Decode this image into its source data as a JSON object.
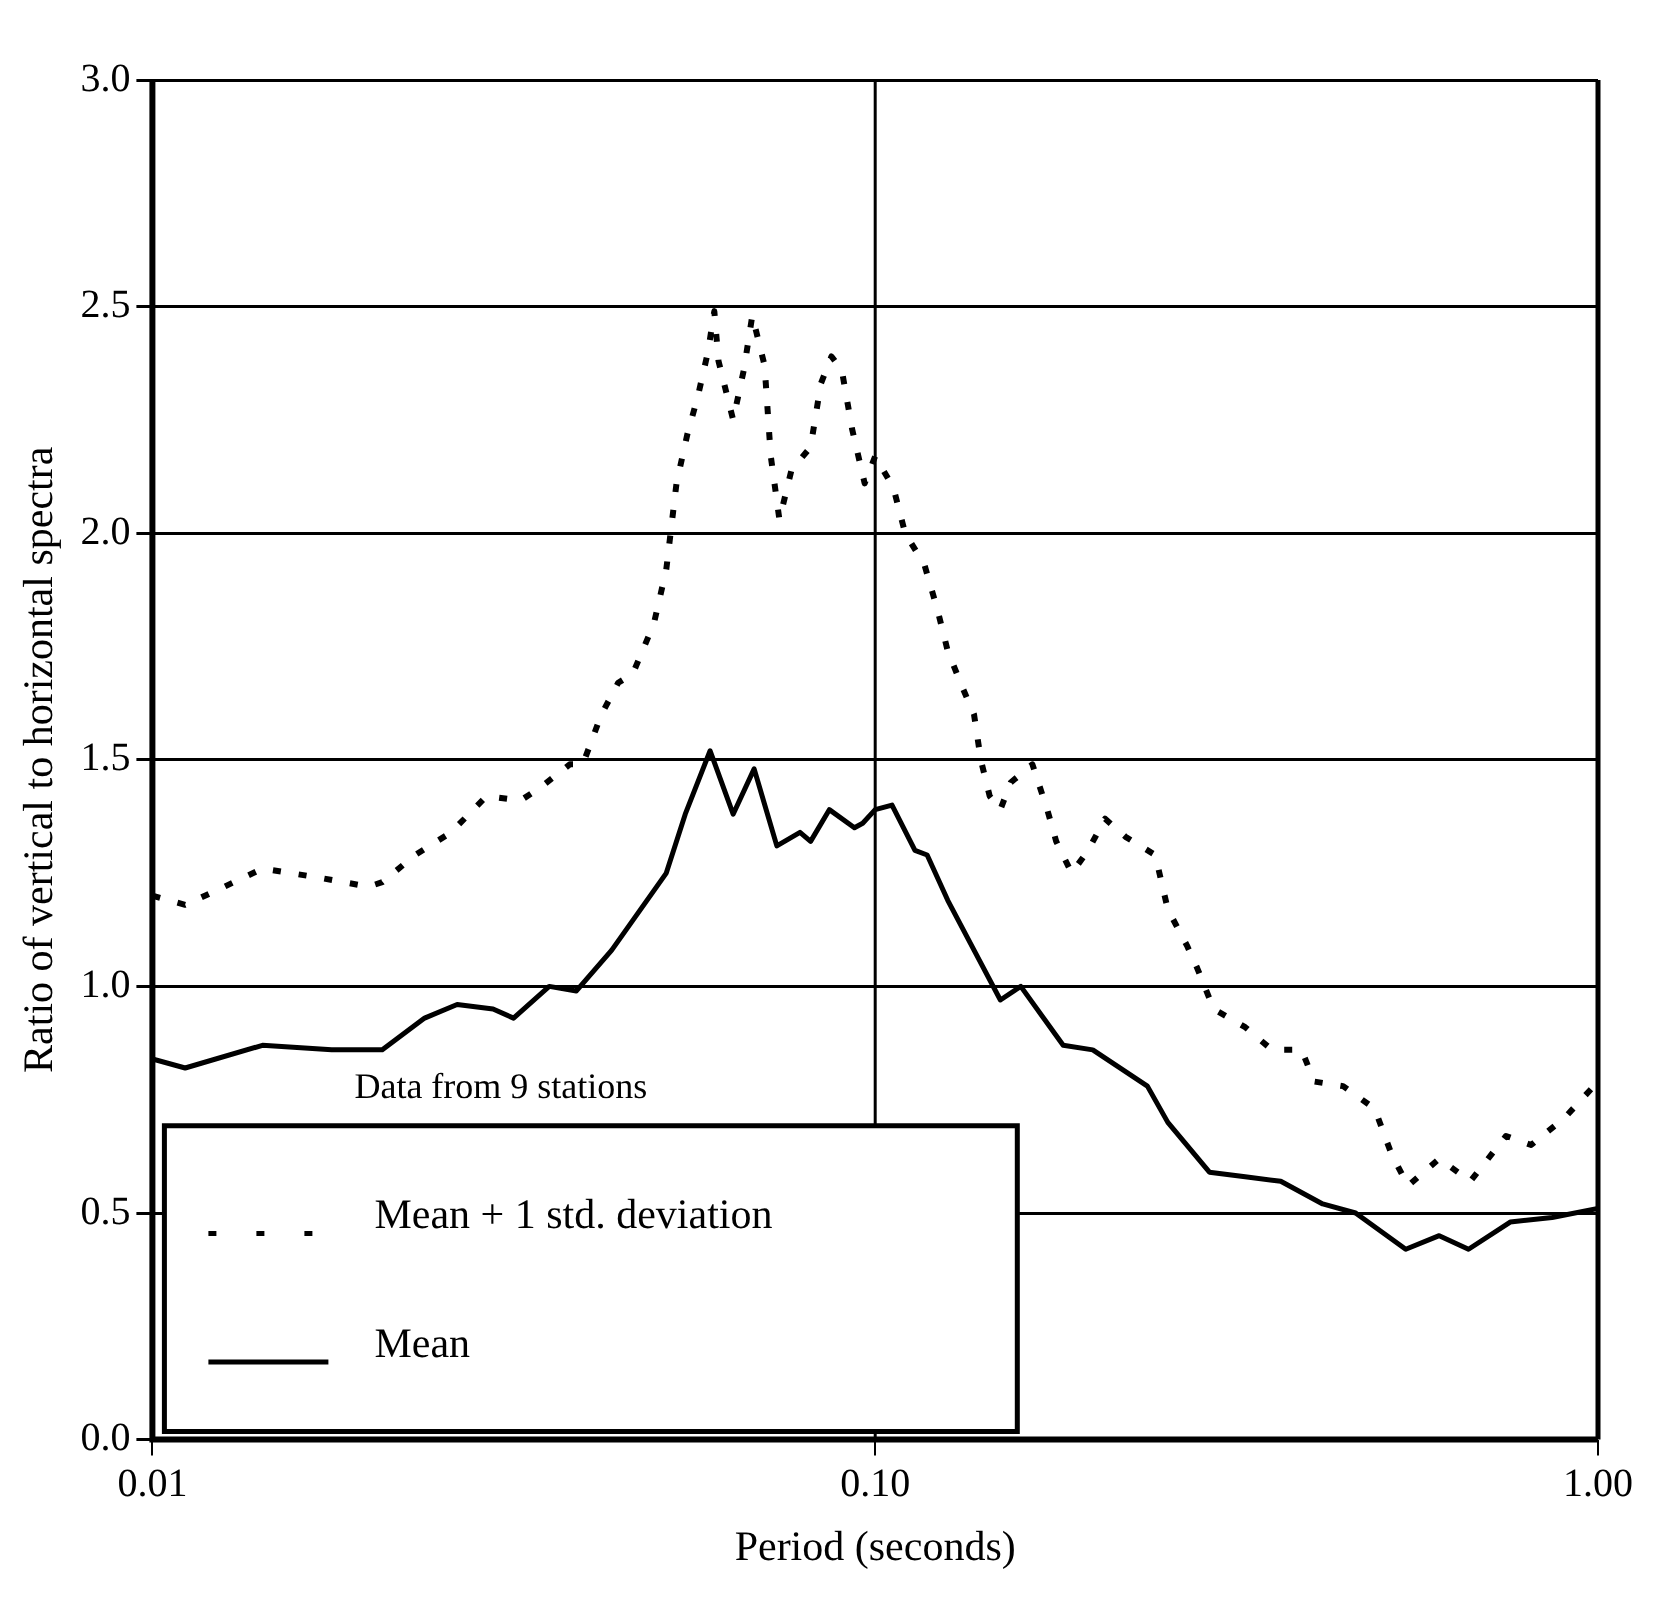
{
  "chart_data": {
    "type": "line",
    "xlabel": "Period (seconds)",
    "ylabel": "Ratio of vertical to horizontal spectra",
    "log": "x",
    "xlim": [
      0.01,
      1.0
    ],
    "xticks": [
      {
        "value": 0.01,
        "label": "0.01"
      },
      {
        "value": 0.1,
        "label": "0.10"
      },
      {
        "value": 1.0,
        "label": "1.00"
      }
    ],
    "ylim": [
      0,
      3
    ],
    "yticks": [
      {
        "value": 0,
        "label": "0.0"
      },
      {
        "value": 0.5,
        "label": "0.5"
      },
      {
        "value": 1,
        "label": "1.0"
      },
      {
        "value": 1.5,
        "label": "1.5"
      },
      {
        "value": 2,
        "label": "2.0"
      },
      {
        "value": 2.5,
        "label": "2.5"
      },
      {
        "value": 3,
        "label": "3.0"
      }
    ],
    "grid": "y",
    "legend": "bottom left",
    "annotations": [
      "Data from 9 stations"
    ],
    "ref_lines": [
      {
        "axis": "x",
        "value": 0.1,
        "color": "#000000"
      }
    ],
    "series": [
      {
        "name": "Mean + 1 std. deviation",
        "color": "#000000",
        "line_style": "dotted",
        "x": [
          0.01,
          0.0111,
          0.0122,
          0.0142,
          0.017,
          0.0199,
          0.0208,
          0.0231,
          0.0259,
          0.029,
          0.0323,
          0.0345,
          0.0378,
          0.0394,
          0.0418,
          0.0441,
          0.0462,
          0.0494,
          0.0514,
          0.0531,
          0.055,
          0.0568,
          0.0587,
          0.0599,
          0.0607,
          0.0636,
          0.0658,
          0.0676,
          0.0703,
          0.0717,
          0.0737,
          0.0766,
          0.0814,
          0.0841,
          0.087,
          0.0899,
          0.0929,
          0.0967,
          0.1,
          0.106,
          0.11,
          0.117,
          0.122,
          0.126,
          0.132,
          0.137,
          0.14,
          0.144,
          0.149,
          0.154,
          0.165,
          0.173,
          0.178,
          0.187,
          0.197,
          0.208,
          0.222,
          0.244,
          0.254,
          0.27,
          0.279,
          0.294,
          0.325,
          0.354,
          0.389,
          0.405,
          0.444,
          0.491,
          0.518,
          0.546,
          0.603,
          0.666,
          0.746,
          0.808,
          0.899,
          1.0
        ],
        "values": [
          1.2,
          1.18,
          1.21,
          1.26,
          1.24,
          1.22,
          1.23,
          1.29,
          1.34,
          1.42,
          1.41,
          1.44,
          1.49,
          1.49,
          1.6,
          1.67,
          1.69,
          1.8,
          1.92,
          2.11,
          2.22,
          2.3,
          2.4,
          2.49,
          2.38,
          2.25,
          2.36,
          2.48,
          2.37,
          2.17,
          2.03,
          2.14,
          2.19,
          2.33,
          2.39,
          2.36,
          2.23,
          2.11,
          2.17,
          2.1,
          2.0,
          1.93,
          1.83,
          1.74,
          1.66,
          1.6,
          1.5,
          1.42,
          1.39,
          1.45,
          1.49,
          1.39,
          1.32,
          1.25,
          1.3,
          1.37,
          1.33,
          1.29,
          1.17,
          1.09,
          1.04,
          0.95,
          0.91,
          0.86,
          0.86,
          0.79,
          0.78,
          0.73,
          0.63,
          0.56,
          0.62,
          0.57,
          0.67,
          0.65,
          0.71,
          0.79
        ]
      },
      {
        "name": "Mean",
        "color": "#000000",
        "line_style": "solid",
        "x": [
          0.01,
          0.0111,
          0.0142,
          0.0177,
          0.0208,
          0.0238,
          0.0264,
          0.0296,
          0.0316,
          0.0354,
          0.0386,
          0.0432,
          0.0514,
          0.0546,
          0.0591,
          0.0636,
          0.068,
          0.0731,
          0.0787,
          0.0814,
          0.0864,
          0.0936,
          0.0961,
          0.1,
          0.1055,
          0.1135,
          0.118,
          0.126,
          0.137,
          0.149,
          0.159,
          0.182,
          0.2,
          0.238,
          0.254,
          0.29,
          0.325,
          0.364,
          0.416,
          0.462,
          0.542,
          0.603,
          0.662,
          0.756,
          0.864,
          1.0
        ],
        "values": [
          0.84,
          0.82,
          0.87,
          0.86,
          0.86,
          0.93,
          0.96,
          0.95,
          0.93,
          1.0,
          0.99,
          1.08,
          1.25,
          1.38,
          1.52,
          1.38,
          1.48,
          1.31,
          1.34,
          1.32,
          1.39,
          1.35,
          1.36,
          1.39,
          1.4,
          1.3,
          1.29,
          1.19,
          1.08,
          0.97,
          1.0,
          0.87,
          0.86,
          0.78,
          0.7,
          0.59,
          0.58,
          0.57,
          0.52,
          0.5,
          0.42,
          0.45,
          0.42,
          0.48,
          0.49,
          0.51
        ]
      }
    ]
  }
}
